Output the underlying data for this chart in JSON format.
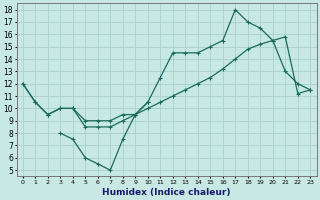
{
  "xlabel": "Humidex (Indice chaleur)",
  "xlim": [
    -0.5,
    23.5
  ],
  "ylim": [
    4.5,
    18.5
  ],
  "xticks": [
    0,
    1,
    2,
    3,
    4,
    5,
    6,
    7,
    8,
    9,
    10,
    11,
    12,
    13,
    14,
    15,
    16,
    17,
    18,
    19,
    20,
    21,
    22,
    23
  ],
  "yticks": [
    5,
    6,
    7,
    8,
    9,
    10,
    11,
    12,
    13,
    14,
    15,
    16,
    17,
    18
  ],
  "bg_color": "#c8e8e4",
  "grid_color": "#a8d0cc",
  "line_color": "#1a6b5a",
  "line1_x": [
    0,
    1,
    2,
    3,
    4,
    5,
    6,
    7,
    8,
    9,
    10,
    11,
    12,
    13,
    14,
    15,
    16,
    17,
    18,
    19,
    20,
    21,
    22,
    23
  ],
  "line1_y": [
    12,
    10.5,
    9.5,
    10,
    10,
    9.0,
    9.0,
    9.0,
    9.5,
    9.5,
    10.5,
    12.5,
    14.5,
    14.5,
    14.5,
    15,
    15.5,
    18,
    17,
    16.5,
    15.5,
    13,
    12,
    11.5
  ],
  "line2_x": [
    0,
    1,
    2,
    3,
    4,
    5,
    6,
    7,
    8,
    9,
    10,
    11,
    12,
    13,
    14,
    15,
    16,
    17,
    18,
    19,
    20,
    21,
    22,
    23
  ],
  "line2_y": [
    12,
    10.5,
    9.5,
    10,
    10,
    8.5,
    8.5,
    8.5,
    9.0,
    9.5,
    10.0,
    10.5,
    11.0,
    11.5,
    12.0,
    12.5,
    13.2,
    14.0,
    14.8,
    15.2,
    15.5,
    15.8,
    11.2,
    11.5
  ],
  "line3_x": [
    3,
    4,
    5,
    6,
    7,
    8,
    9,
    10
  ],
  "line3_y": [
    8,
    7.5,
    6,
    5.5,
    5,
    7.5,
    9.5,
    10.5
  ]
}
